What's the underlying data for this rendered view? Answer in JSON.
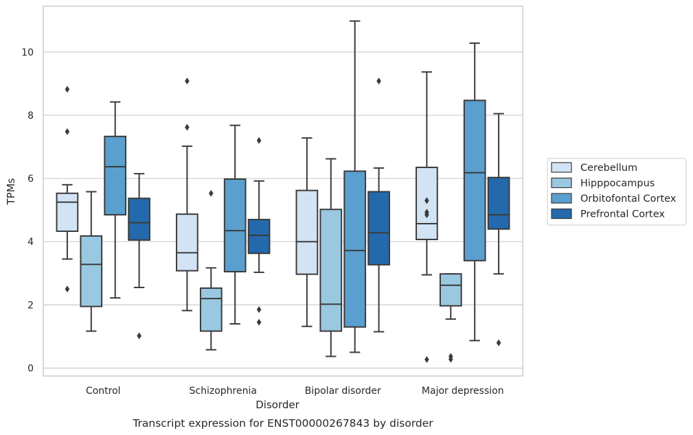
{
  "caption": "Transcript expression for ENST00000267843 by disorder",
  "chart_data": {
    "type": "box",
    "xlabel": "Disorder",
    "ylabel": "TPMs",
    "ylim": [
      -0.25,
      11.45
    ],
    "yticks": [
      0,
      2,
      4,
      6,
      8,
      10
    ],
    "grid": "horizontal",
    "legend_position": "right",
    "categories": [
      "Control",
      "Schizophrenia",
      "Bipolar disorder",
      "Major depression"
    ],
    "series": [
      {
        "name": "Cerebellum",
        "color": "#d2e3f3",
        "boxes": [
          {
            "whisker_low": 3.45,
            "q1": 4.33,
            "median": 5.25,
            "q3": 5.53,
            "whisker_high": 5.8,
            "outliers": [
              8.82,
              7.48,
              2.5
            ]
          },
          {
            "whisker_low": 1.82,
            "q1": 3.08,
            "median": 3.65,
            "q3": 4.87,
            "whisker_high": 7.02,
            "outliers": [
              9.08,
              7.62
            ]
          },
          {
            "whisker_low": 1.32,
            "q1": 2.97,
            "median": 4.0,
            "q3": 5.62,
            "whisker_high": 7.28,
            "outliers": []
          },
          {
            "whisker_low": 2.95,
            "q1": 4.07,
            "median": 4.57,
            "q3": 6.35,
            "whisker_high": 9.37,
            "outliers": [
              5.3,
              4.93,
              4.85,
              0.27
            ]
          }
        ]
      },
      {
        "name": "Hipppocampus",
        "color": "#9ac8e0",
        "boxes": [
          {
            "whisker_low": 1.17,
            "q1": 1.95,
            "median": 3.28,
            "q3": 4.18,
            "whisker_high": 5.58,
            "outliers": []
          },
          {
            "whisker_low": 0.58,
            "q1": 1.17,
            "median": 2.2,
            "q3": 2.53,
            "whisker_high": 3.17,
            "outliers": [
              5.53
            ]
          },
          {
            "whisker_low": 0.37,
            "q1": 1.17,
            "median": 2.02,
            "q3": 5.02,
            "whisker_high": 6.62,
            "outliers": []
          },
          {
            "whisker_low": 1.55,
            "q1": 1.97,
            "median": 2.62,
            "q3": 2.98,
            "whisker_high": 2.98,
            "outliers": [
              0.37,
              0.28
            ]
          }
        ]
      },
      {
        "name": "Orbitofontal Cortex",
        "color": "#5a9fcd",
        "boxes": [
          {
            "whisker_low": 2.22,
            "q1": 4.85,
            "median": 6.37,
            "q3": 7.33,
            "whisker_high": 8.42,
            "outliers": []
          },
          {
            "whisker_low": 1.4,
            "q1": 3.05,
            "median": 4.35,
            "q3": 5.98,
            "whisker_high": 7.68,
            "outliers": []
          },
          {
            "whisker_low": 0.5,
            "q1": 1.3,
            "median": 3.72,
            "q3": 6.23,
            "whisker_high": 10.98,
            "outliers": []
          },
          {
            "whisker_low": 0.87,
            "q1": 3.4,
            "median": 6.18,
            "q3": 8.47,
            "whisker_high": 10.28,
            "outliers": []
          }
        ]
      },
      {
        "name": "Prefrontal Cortex",
        "color": "#2369ac",
        "boxes": [
          {
            "whisker_low": 2.55,
            "q1": 4.05,
            "median": 4.6,
            "q3": 5.37,
            "whisker_high": 6.15,
            "outliers": [
              1.02
            ]
          },
          {
            "whisker_low": 3.03,
            "q1": 3.63,
            "median": 4.2,
            "q3": 4.7,
            "whisker_high": 5.92,
            "outliers": [
              7.2,
              1.85,
              1.45
            ]
          },
          {
            "whisker_low": 1.15,
            "q1": 3.27,
            "median": 4.28,
            "q3": 5.58,
            "whisker_high": 6.33,
            "outliers": [
              9.08
            ]
          },
          {
            "whisker_low": 2.98,
            "q1": 4.4,
            "median": 4.85,
            "q3": 6.03,
            "whisker_high": 8.05,
            "outliers": [
              0.8
            ]
          }
        ]
      }
    ]
  }
}
